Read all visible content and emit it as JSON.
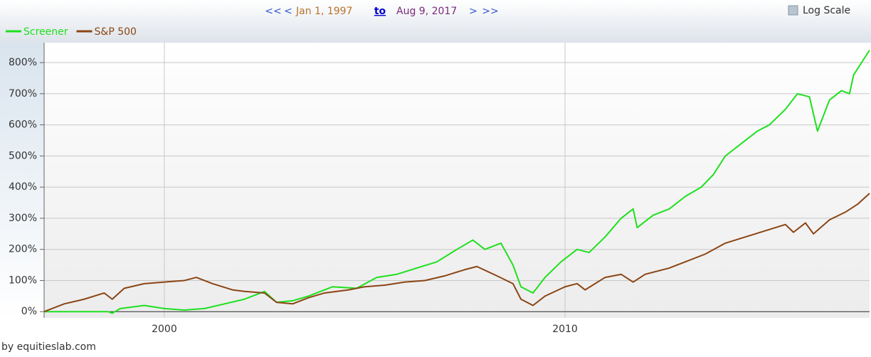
{
  "nav": {
    "first": "<<",
    "prev": "<",
    "start": "Jan 1, 1997",
    "to": "to",
    "end": "Aug 9, 2017",
    "next": ">",
    "last": ">>",
    "log_label": "Log Scale"
  },
  "footer": "by equitieslab.com",
  "chart_data": {
    "type": "line",
    "log_scale": false,
    "grid": true,
    "legend": "top-left",
    "xlim": [
      1997,
      2017.6
    ],
    "xticks": [
      2000,
      2010
    ],
    "ylim": [
      -20,
      864
    ],
    "yticks": [
      {
        "value": 0,
        "label": "0%"
      },
      {
        "value": 100,
        "label": "100%"
      },
      {
        "value": 200,
        "label": "200%"
      },
      {
        "value": 300,
        "label": "300%"
      },
      {
        "value": 400,
        "label": "400%"
      },
      {
        "value": 500,
        "label": "500%"
      },
      {
        "value": 600,
        "label": "600%"
      },
      {
        "value": 700,
        "label": "700%"
      },
      {
        "value": 800,
        "label": "800%"
      }
    ],
    "series": [
      {
        "name": "Screener",
        "color": "#1ee01e",
        "x": [
          1997.0,
          1998.6,
          1998.7,
          1998.9,
          1999.5,
          2000.0,
          2000.5,
          2001.0,
          2001.5,
          2002.0,
          2002.5,
          2002.8,
          2003.2,
          2003.6,
          2004.2,
          2004.8,
          2005.3,
          2005.8,
          2006.3,
          2006.8,
          2007.3,
          2007.7,
          2008.0,
          2008.4,
          2008.7,
          2008.9,
          2009.2,
          2009.5,
          2009.9,
          2010.3,
          2010.6,
          2011.0,
          2011.4,
          2011.7,
          2011.8,
          2012.2,
          2012.6,
          2013.0,
          2013.4,
          2013.7,
          2014.0,
          2014.5,
          2014.8,
          2015.1,
          2015.5,
          2015.8,
          2016.1,
          2016.3,
          2016.6,
          2016.9,
          2017.1,
          2017.2,
          2017.4,
          2017.6
        ],
        "values": [
          0,
          0,
          -5,
          10,
          20,
          10,
          5,
          10,
          25,
          40,
          65,
          30,
          35,
          50,
          80,
          75,
          110,
          120,
          140,
          160,
          200,
          230,
          200,
          220,
          150,
          80,
          60,
          110,
          160,
          200,
          190,
          240,
          300,
          330,
          270,
          310,
          330,
          370,
          400,
          440,
          500,
          550,
          580,
          600,
          650,
          700,
          690,
          580,
          680,
          710,
          700,
          760,
          800,
          840
        ]
      },
      {
        "name": "S&P 500",
        "color": "#8b4513",
        "x": [
          1997.0,
          1997.5,
          1998.0,
          1998.5,
          1998.7,
          1999.0,
          1999.5,
          2000.0,
          2000.5,
          2000.8,
          2001.2,
          2001.7,
          2002.0,
          2002.5,
          2002.8,
          2003.2,
          2003.6,
          2004.0,
          2004.6,
          2005.0,
          2005.5,
          2006.0,
          2006.5,
          2007.0,
          2007.5,
          2007.8,
          2008.3,
          2008.7,
          2008.9,
          2009.2,
          2009.5,
          2010.0,
          2010.3,
          2010.5,
          2011.0,
          2011.4,
          2011.7,
          2012.0,
          2012.6,
          2013.0,
          2013.5,
          2014.0,
          2014.5,
          2015.0,
          2015.5,
          2015.7,
          2016.0,
          2016.2,
          2016.6,
          2017.0,
          2017.3,
          2017.6
        ],
        "values": [
          0,
          25,
          40,
          60,
          40,
          75,
          90,
          95,
          100,
          110,
          90,
          70,
          65,
          60,
          30,
          25,
          45,
          60,
          70,
          80,
          85,
          95,
          100,
          115,
          135,
          145,
          115,
          90,
          40,
          20,
          50,
          80,
          90,
          70,
          110,
          120,
          95,
          120,
          140,
          160,
          185,
          220,
          240,
          260,
          280,
          255,
          285,
          250,
          295,
          320,
          345,
          380
        ]
      }
    ]
  }
}
